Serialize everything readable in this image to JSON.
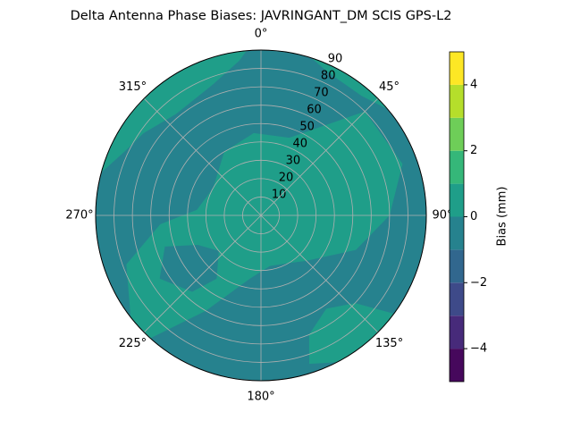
{
  "chart_data": {
    "type": "polar-contour",
    "title": "Delta Antenna Phase Biases: JAVRINGANT_DM   SCIS GPS-L2",
    "colorbar_label": "Bias (mm)",
    "levels": [
      -5,
      -4,
      -3,
      -2,
      -1,
      0,
      1,
      2,
      3,
      4,
      5
    ],
    "colors": [
      "#46085c",
      "#472a7a",
      "#3e4a89",
      "#31678e",
      "#26828e",
      "#1f9e89",
      "#35b779",
      "#6ece58",
      "#b5de2b",
      "#fde725"
    ],
    "cbar_ticks": [
      {
        "value": -4,
        "label": "−4"
      },
      {
        "value": -2,
        "label": "−2"
      },
      0,
      2,
      4
    ],
    "rlim": [
      0,
      90
    ],
    "rticks": [
      10,
      20,
      30,
      40,
      50,
      60,
      70,
      80,
      90
    ],
    "angle_ticks": [
      {
        "value": 0,
        "label": "0°"
      },
      {
        "value": 45,
        "label": "45°"
      },
      {
        "value": 90,
        "label": "90°"
      },
      {
        "value": 135,
        "label": "135°"
      },
      {
        "value": 180,
        "label": "180°"
      },
      {
        "value": 225,
        "label": "225°"
      },
      {
        "value": 270,
        "label": "270°"
      },
      {
        "value": 315,
        "label": "315°"
      }
    ],
    "background_range": [
      -1,
      0
    ],
    "regions": [
      {
        "range": [
          0,
          1
        ],
        "azimuth": [
          20,
          45,
          70,
          90,
          110,
          125,
          135,
          150,
          170,
          190,
          210,
          222,
          232,
          250,
          265,
          275,
          300,
          330,
          355
        ],
        "zenith": [
          45,
          80,
          82,
          70,
          55,
          40,
          35,
          30,
          28,
          35,
          60,
          90,
          90,
          78,
          55,
          35,
          30,
          40,
          45
        ]
      },
      {
        "range": [
          0,
          1
        ],
        "azimuth": [
          285,
          295,
          305,
          320,
          340,
          352,
          355,
          345,
          330,
          315,
          300
        ],
        "zenith": [
          90,
          82,
          78,
          72,
          76,
          85,
          90,
          92,
          92,
          92,
          92
        ]
      },
      {
        "range": [
          0,
          1
        ],
        "azimuth": [
          15,
          25,
          40,
          50,
          45,
          30
        ],
        "zenith": [
          92,
          86,
          85,
          90,
          92,
          92
        ]
      },
      {
        "range": [
          0,
          1
        ],
        "azimuth": [
          126,
          133,
          145,
          158,
          162,
          150,
          138
        ],
        "zenith": [
          92,
          70,
          62,
          70,
          85,
          92,
          92
        ]
      },
      {
        "range": [
          -1,
          0
        ],
        "azimuth": [
          215,
          230,
          245,
          252,
          238,
          222
        ],
        "zenith": [
          42,
          30,
          38,
          55,
          65,
          56
        ]
      }
    ]
  }
}
